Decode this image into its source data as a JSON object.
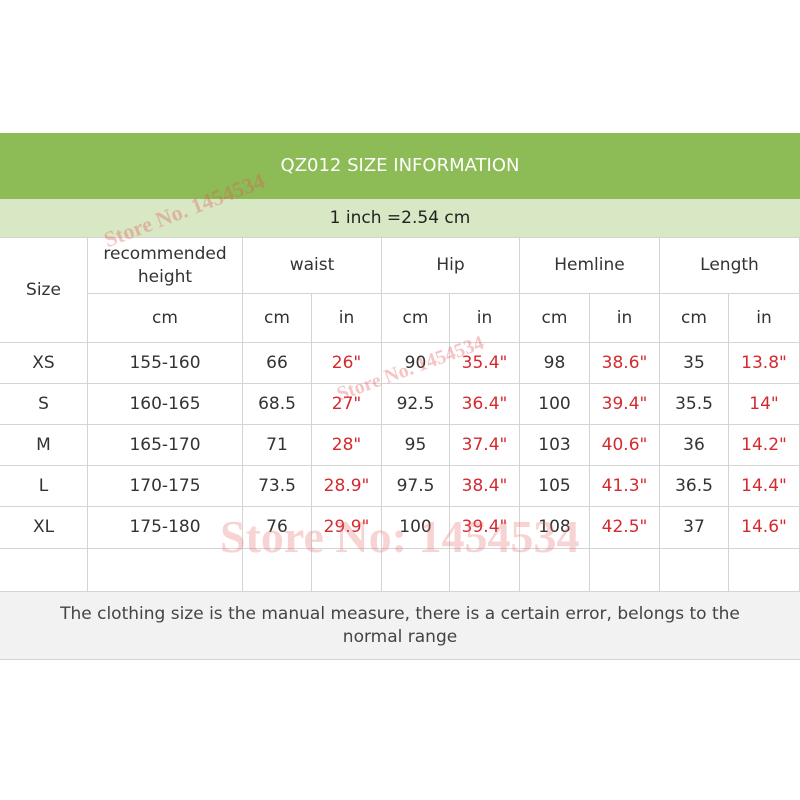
{
  "title": "QZ012 SIZE INFORMATION",
  "note": "1 inch =2.54 cm",
  "table": {
    "header": [
      "Size",
      "recommended height",
      "waist",
      "Hip",
      "Hemline",
      "Length"
    ],
    "units": [
      "cm",
      "cm",
      "in",
      "cm",
      "in",
      "cm",
      "in",
      "cm",
      "in"
    ],
    "rows": [
      [
        "XS",
        "155-160",
        "66",
        "26\"",
        "90",
        "35.4\"",
        "98",
        "38.6\"",
        "35",
        "13.8\""
      ],
      [
        "S",
        "160-165",
        "68.5",
        "27\"",
        "92.5",
        "36.4\"",
        "100",
        "39.4\"",
        "35.5",
        "14\""
      ],
      [
        "M",
        "165-170",
        "71",
        "28\"",
        "95",
        "37.4\"",
        "103",
        "40.6\"",
        "36",
        "14.2\""
      ],
      [
        "L",
        "170-175",
        "73.5",
        "28.9\"",
        "97.5",
        "38.4\"",
        "105",
        "41.3\"",
        "36.5",
        "14.4\""
      ],
      [
        "XL",
        "175-180",
        "76",
        "29.9\"",
        "100",
        "39.4\"",
        "108",
        "42.5\"",
        "37",
        "14.6\""
      ]
    ]
  },
  "footer": "The clothing size is the manual measure, there is a certain error, belongs to the normal range",
  "watermarks": [
    "Store No. 1454534",
    "Store No. 1454534",
    "Store No: 1454534"
  ]
}
